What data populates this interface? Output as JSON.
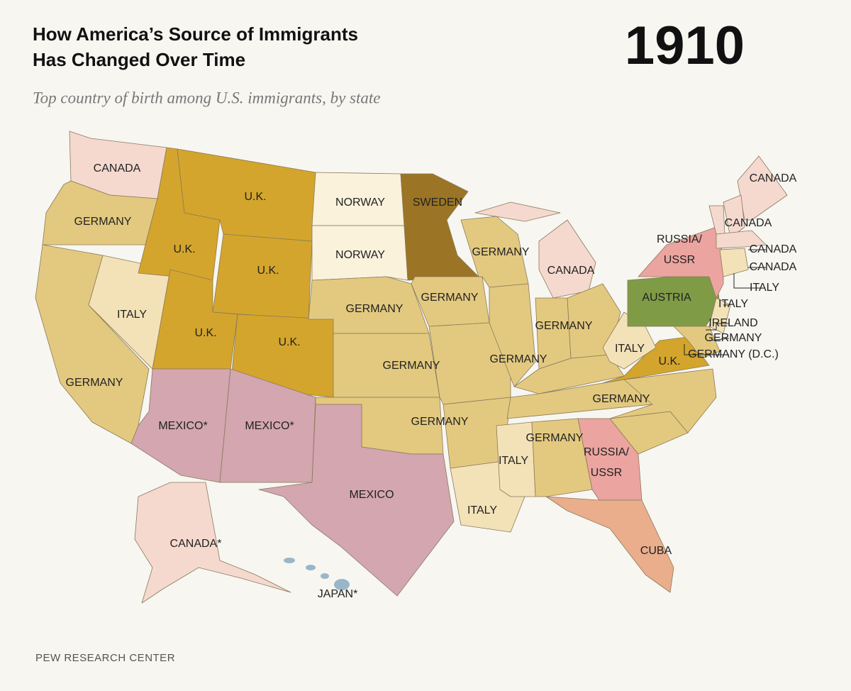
{
  "header": {
    "title_lines": [
      "How America’s Source of Immigrants",
      "Has Changed Over Time"
    ],
    "year": "1910",
    "subtitle": "Top country of birth among U.S. immigrants, by state"
  },
  "labels": [
    "CANADA",
    "GERMANY",
    "U.K.",
    "U.K.",
    "NORWAY",
    "NORWAY",
    "SWEDEN",
    "U.K.",
    "GERMANY",
    "CANADA",
    "CANADA",
    "CANADA",
    [
      "RUSSIA/",
      "USSR"
    ],
    "ITALY",
    "GERMANY",
    "GERMANY",
    "GERMANY",
    "AUSTRIA",
    "U.K.",
    "U.K.",
    "GERMANY",
    "GERMANY",
    "ITALY",
    "U.K.",
    "GERMANY",
    "GERMANY",
    "MEXICO*",
    "MEXICO*",
    "GERMANY",
    "GERMANY",
    [
      "RUSSIA/",
      "USSR"
    ],
    "ITALY",
    "MEXICO",
    "ITALY",
    "CANADA*",
    "CUBA",
    "JAPAN*"
  ],
  "callouts": [
    "CANADA",
    "CANADA",
    "ITALY",
    "ITALY",
    "IRELAND",
    "GERMANY",
    "GERMANY (D.C.)"
  ],
  "footer": "PEW RESEARCH CENTER"
}
